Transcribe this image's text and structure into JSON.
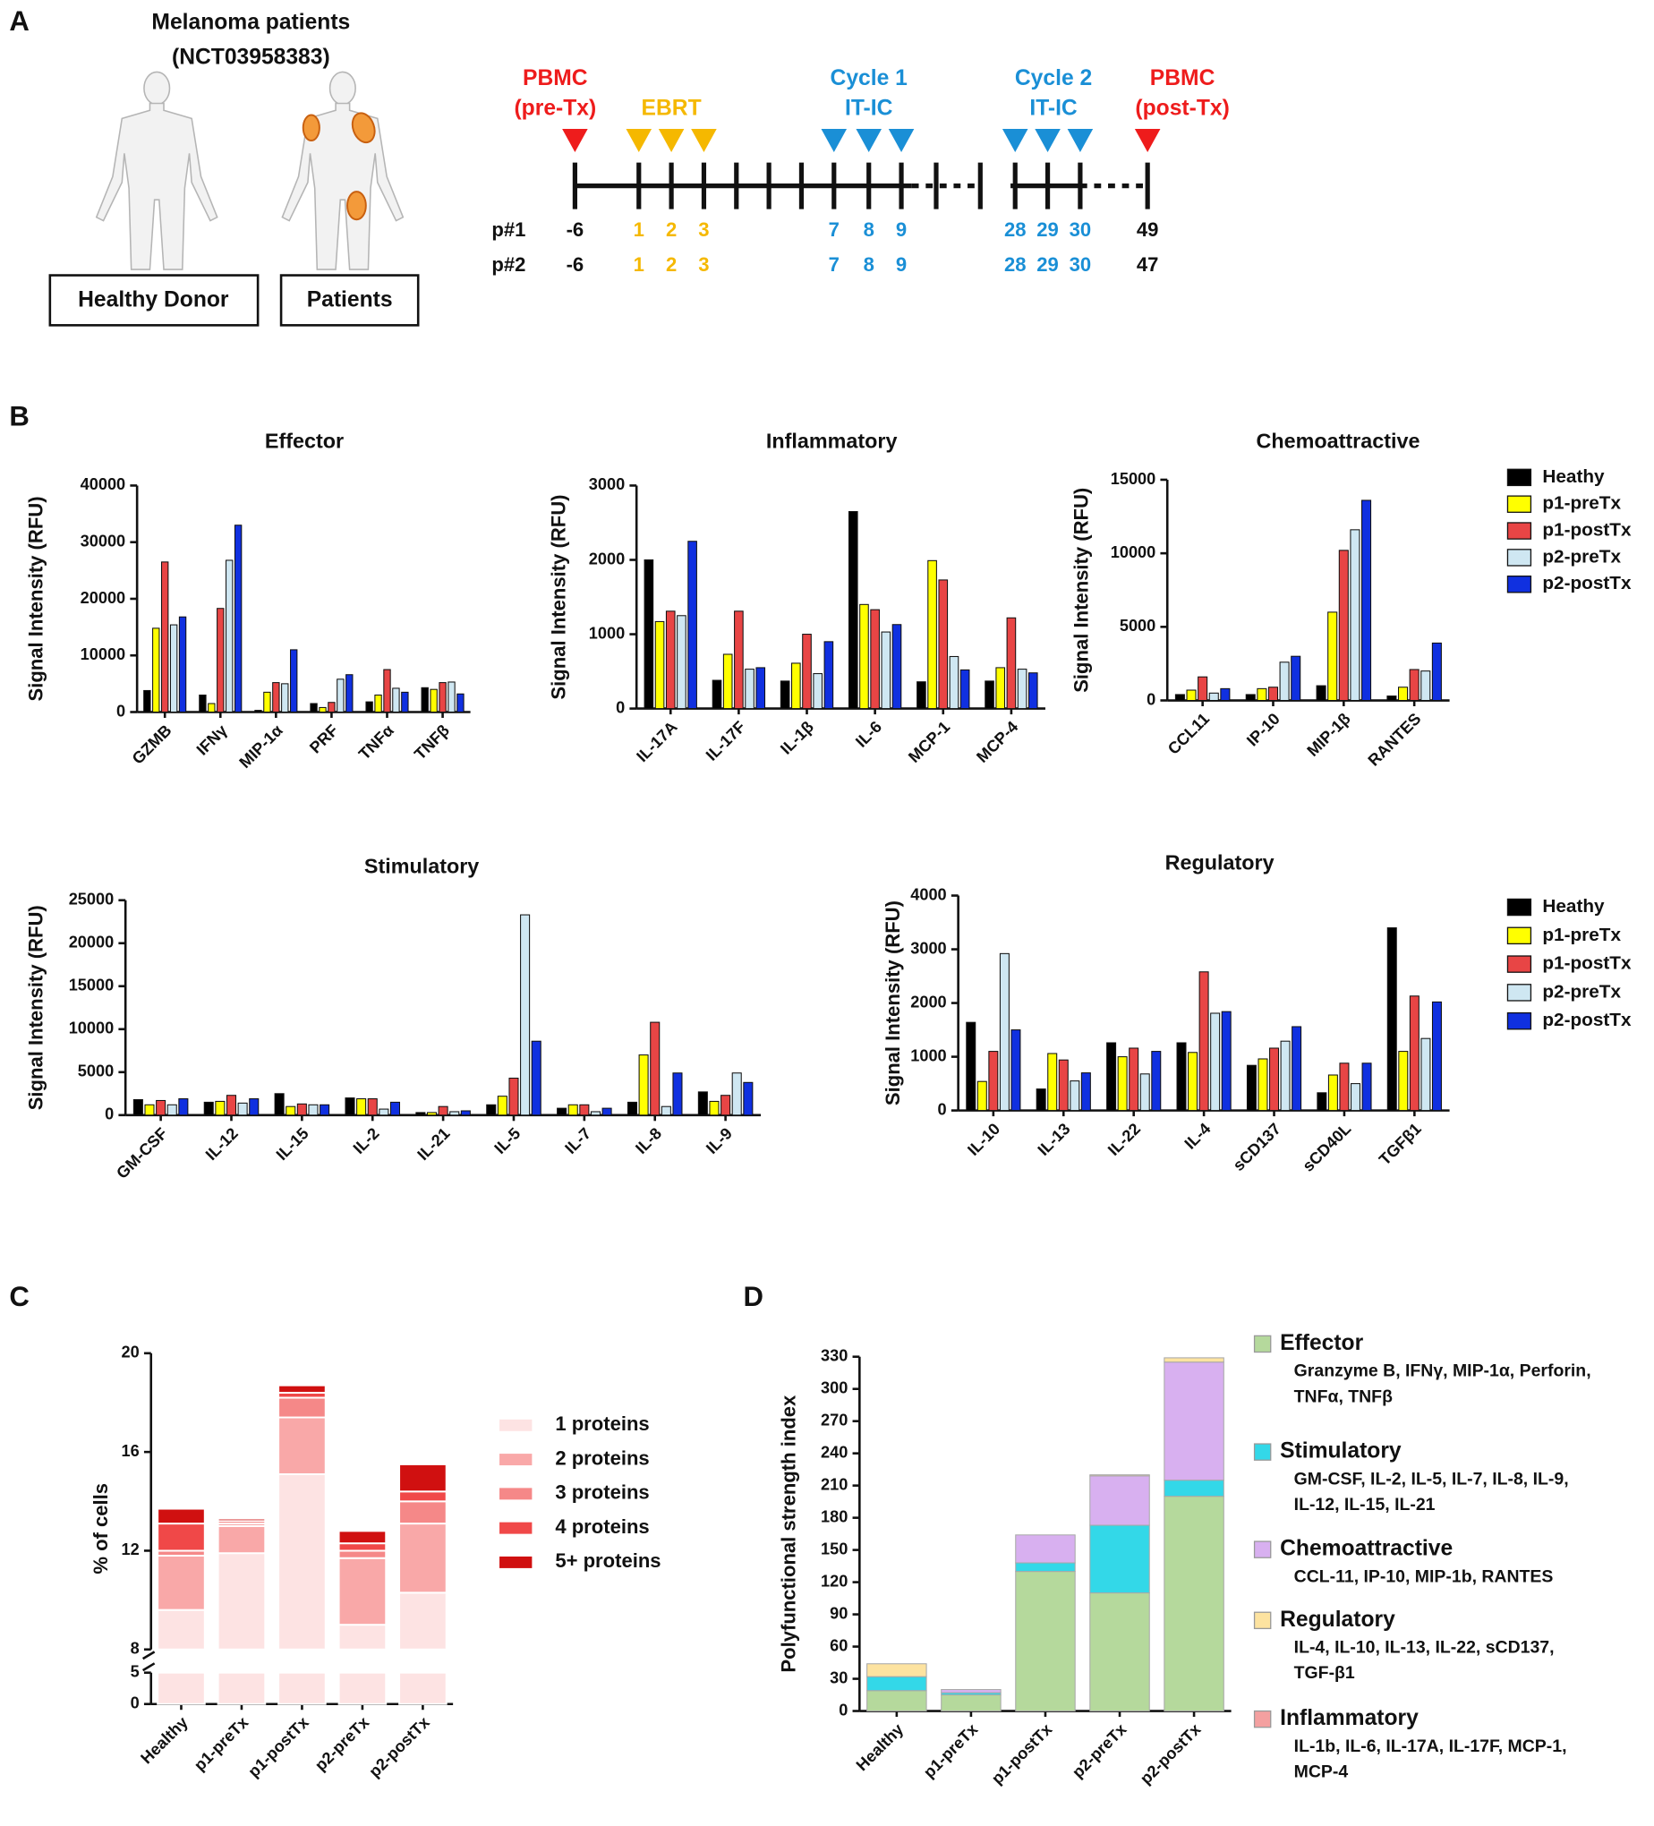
{
  "panel_labels": [
    "A",
    "B",
    "C",
    "D"
  ],
  "panel_a": {
    "title": "Melanoma patients",
    "subtitle": "(NCT03958383)",
    "boxes": [
      "Healthy Donor",
      "Patients"
    ],
    "groups": [
      {
        "lines": [
          "PBMC",
          "(pre-Tx)"
        ],
        "color": "#ee1c1c"
      },
      {
        "lines": [
          "EBRT"
        ],
        "color": "#f5b800"
      },
      {
        "lines": [
          "Cycle 1",
          "IT-IC"
        ],
        "color": "#1a8fd6"
      },
      {
        "lines": [
          "Cycle 2",
          "IT-IC"
        ],
        "color": "#1a8fd6"
      },
      {
        "lines": [
          "PBMC",
          "(post-Tx)"
        ],
        "color": "#ee1c1c"
      }
    ],
    "rows": [
      {
        "label": "p#1",
        "days": [
          "-6",
          "1",
          "2",
          "3",
          "7",
          "8",
          "9",
          "28",
          "29",
          "30",
          "49"
        ]
      },
      {
        "label": "p#2",
        "days": [
          "-6",
          "1",
          "2",
          "3",
          "7",
          "8",
          "9",
          "28",
          "29",
          "30",
          "47"
        ]
      }
    ]
  },
  "chart_data": [
    {
      "type": "bar",
      "title": "Effector",
      "ylabel": "Signal Intensity (RFU)",
      "categories": [
        "GZMB",
        "IFNγ",
        "MIP-1α",
        "PRF",
        "TNFα",
        "TNFβ"
      ],
      "ylim": [
        0,
        40000
      ],
      "yticks": [
        0,
        10000,
        20000,
        30000,
        40000
      ],
      "series": [
        {
          "name": "Heathy",
          "color": "#000000",
          "values": [
            3800,
            3000,
            300,
            1500,
            1800,
            4300
          ]
        },
        {
          "name": "p1-preTx",
          "color": "#ffff00",
          "values": [
            14800,
            1500,
            3500,
            800,
            3000,
            4000
          ]
        },
        {
          "name": "p1-postTx",
          "color": "#e84545",
          "values": [
            26500,
            18300,
            5200,
            1700,
            7500,
            5200
          ]
        },
        {
          "name": "p2-preTx",
          "color": "#cfe7f2",
          "values": [
            15400,
            26800,
            5000,
            5800,
            4200,
            5300
          ]
        },
        {
          "name": "p2-postTx",
          "color": "#1030e0",
          "values": [
            16800,
            33000,
            11000,
            6600,
            3500,
            3200
          ]
        }
      ]
    },
    {
      "type": "bar",
      "title": "Inflammatory",
      "ylabel": "Signal Intensity (RFU)",
      "categories": [
        "IL-17A",
        "IL-17F",
        "IL-1β",
        "IL-6",
        "MCP-1",
        "MCP-4"
      ],
      "ylim": [
        0,
        3000
      ],
      "yticks": [
        0,
        1000,
        2000,
        3000
      ],
      "series": [
        {
          "name": "Heathy",
          "color": "#000000",
          "values": [
            2000,
            380,
            370,
            2650,
            360,
            370
          ]
        },
        {
          "name": "p1-preTx",
          "color": "#ffff00",
          "values": [
            1170,
            730,
            610,
            1400,
            1990,
            550
          ]
        },
        {
          "name": "p1-postTx",
          "color": "#e84545",
          "values": [
            1310,
            1310,
            1000,
            1330,
            1730,
            1220
          ]
        },
        {
          "name": "p2-preTx",
          "color": "#cfe7f2",
          "values": [
            1250,
            530,
            470,
            1030,
            700,
            530
          ]
        },
        {
          "name": "p2-postTx",
          "color": "#1030e0",
          "values": [
            2250,
            550,
            900,
            1130,
            520,
            480
          ]
        }
      ]
    },
    {
      "type": "bar",
      "title": "Chemoattractive",
      "ylabel": "Signal Intensity (RFU)",
      "legend": "right",
      "categories": [
        "CCL11",
        "IP-10",
        "MIP-1β",
        "RANTES"
      ],
      "ylim": [
        0,
        15000
      ],
      "yticks": [
        0,
        5000,
        10000,
        15000
      ],
      "series": [
        {
          "name": "Heathy",
          "color": "#000000",
          "values": [
            400,
            400,
            1000,
            300
          ]
        },
        {
          "name": "p1-preTx",
          "color": "#ffff00",
          "values": [
            700,
            800,
            6000,
            900
          ]
        },
        {
          "name": "p1-postTx",
          "color": "#e84545",
          "values": [
            1600,
            900,
            10200,
            2100
          ]
        },
        {
          "name": "p2-preTx",
          "color": "#cfe7f2",
          "values": [
            500,
            2600,
            11600,
            2000
          ]
        },
        {
          "name": "p2-postTx",
          "color": "#1030e0",
          "values": [
            800,
            3000,
            13600,
            3900
          ]
        }
      ]
    },
    {
      "type": "bar",
      "title": "Stimulatory",
      "ylabel": "Signal Intensity (RFU)",
      "categories": [
        "GM-CSF",
        "IL-12",
        "IL-15",
        "IL-2",
        "IL-21",
        "IL-5",
        "IL-7",
        "IL-8",
        "IL-9"
      ],
      "ylim": [
        0,
        25000
      ],
      "yticks": [
        0,
        5000,
        10000,
        15000,
        20000,
        25000
      ],
      "series": [
        {
          "name": "Heathy",
          "color": "#000000",
          "values": [
            1800,
            1500,
            2500,
            2000,
            300,
            1200,
            800,
            1500,
            2700
          ]
        },
        {
          "name": "p1-preTx",
          "color": "#ffff00",
          "values": [
            1200,
            1600,
            1000,
            1900,
            300,
            2200,
            1200,
            7000,
            1600
          ]
        },
        {
          "name": "p1-postTx",
          "color": "#e84545",
          "values": [
            1700,
            2300,
            1300,
            1900,
            1000,
            4300,
            1200,
            10800,
            2300
          ]
        },
        {
          "name": "p2-preTx",
          "color": "#cfe7f2",
          "values": [
            1200,
            1400,
            1200,
            700,
            400,
            23300,
            400,
            1000,
            4900
          ]
        },
        {
          "name": "p2-postTx",
          "color": "#1030e0",
          "values": [
            1900,
            1900,
            1200,
            1500,
            500,
            8600,
            800,
            4900,
            3800
          ]
        }
      ]
    },
    {
      "type": "bar",
      "title": "Regulatory",
      "ylabel": "Signal Intensity (RFU)",
      "legend": "right",
      "categories": [
        "IL-10",
        "IL-13",
        "IL-22",
        "IL-4",
        "sCD137",
        "sCD40L",
        "TGFβ1"
      ],
      "ylim": [
        0,
        4000
      ],
      "yticks": [
        0,
        1000,
        2000,
        3000,
        4000
      ],
      "series": [
        {
          "name": "Heathy",
          "color": "#000000",
          "values": [
            1640,
            400,
            1260,
            1260,
            840,
            330,
            3400
          ]
        },
        {
          "name": "p1-preTx",
          "color": "#ffff00",
          "values": [
            540,
            1060,
            1000,
            1080,
            960,
            660,
            1100
          ]
        },
        {
          "name": "p1-postTx",
          "color": "#e84545",
          "values": [
            1100,
            940,
            1160,
            2580,
            1160,
            880,
            2130
          ]
        },
        {
          "name": "p2-preTx",
          "color": "#cfe7f2",
          "values": [
            2920,
            550,
            680,
            1810,
            1290,
            500,
            1340
          ]
        },
        {
          "name": "p2-postTx",
          "color": "#1030e0",
          "values": [
            1500,
            700,
            1100,
            1840,
            1560,
            880,
            2020
          ]
        }
      ]
    },
    {
      "type": "stacked_bar",
      "ylabel": "% of cells",
      "legend": "right",
      "categories": [
        "Healthy",
        "p1-preTx",
        "p1-postTx",
        "p2-preTx",
        "p2-postTx"
      ],
      "ylim": [
        0,
        20
      ],
      "yticks": [
        0,
        5,
        8,
        12,
        16,
        20
      ],
      "axis_break": [
        5,
        8
      ],
      "series": [
        {
          "name": "1 proteins",
          "color": "#fde3e3",
          "values": [
            9.6,
            11.9,
            15.1,
            9.0,
            10.3
          ]
        },
        {
          "name": "2 proteins",
          "color": "#f9a8a8",
          "values": [
            2.2,
            1.1,
            2.3,
            2.7,
            2.8
          ]
        },
        {
          "name": "3 proteins",
          "color": "#f58888",
          "values": [
            0.2,
            0.1,
            0.8,
            0.3,
            0.9
          ]
        },
        {
          "name": "4 proteins",
          "color": "#f04848",
          "values": [
            1.1,
            0.1,
            0.2,
            0.3,
            0.4
          ]
        },
        {
          "name": "5+ proteins",
          "color": "#d01010",
          "values": [
            0.6,
            0.1,
            0.3,
            0.5,
            1.1
          ]
        }
      ]
    },
    {
      "type": "stacked_bar",
      "ylabel": "Polyfunctional strength index",
      "legend": "right",
      "categories": [
        "Healthy",
        "p1-preTx",
        "p1-postTx",
        "p2-preTx",
        "p2-postTx"
      ],
      "ylim": [
        0,
        330
      ],
      "yticks": [
        0,
        30,
        60,
        90,
        120,
        150,
        180,
        210,
        240,
        270,
        300,
        330
      ],
      "series": [
        {
          "name": "Effector",
          "color": "#b5d99c",
          "values": [
            19,
            15,
            130,
            110,
            200
          ],
          "members": [
            "Granzyme B, IFNγ, MIP-1α, Perforin,",
            "TNFα, TNFβ"
          ]
        },
        {
          "name": "Stimulatory",
          "color": "#33d8e8",
          "values": [
            13,
            2,
            8,
            63,
            15
          ],
          "members": [
            "GM-CSF, IL-2, IL-5, IL-7, IL-8, IL-9,",
            "IL-12, IL-15, IL-21"
          ]
        },
        {
          "name": "Chemoattractive",
          "color": "#d8b0f0",
          "values": [
            0,
            3,
            26,
            46,
            110
          ],
          "members": [
            "CCL-11, IP-10, MIP-1b, RANTES"
          ]
        },
        {
          "name": "Regulatory",
          "color": "#fde3a0",
          "values": [
            12,
            0,
            0,
            1,
            4
          ],
          "members": [
            "IL-4, IL-10, IL-13, IL-22, sCD137,",
            "TGF-β1"
          ]
        },
        {
          "name": "Inflammatory",
          "color": "#f4a0a0",
          "values": [
            0,
            0,
            0,
            0,
            0
          ],
          "members": [
            "IL-1b, IL-6, IL-17A, IL-17F, MCP-1,",
            "MCP-4"
          ]
        }
      ]
    }
  ]
}
